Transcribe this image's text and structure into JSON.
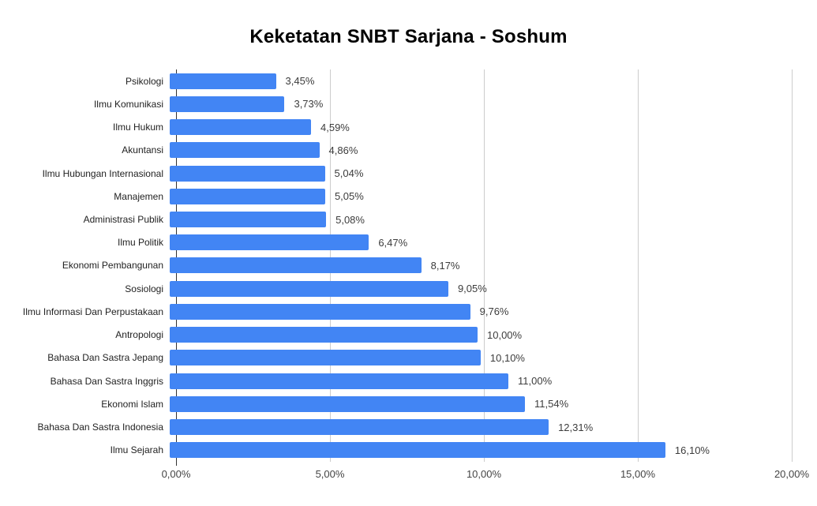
{
  "chart_data": {
    "type": "bar",
    "orientation": "horizontal",
    "title": "Keketatan SNBT Sarjana - Soshum",
    "xlabel": "",
    "ylabel": "",
    "xlim": [
      0,
      20
    ],
    "grid": true,
    "legend_position": "none",
    "categories": [
      "Psikologi",
      "Ilmu Komunikasi",
      "Ilmu Hukum",
      "Akuntansi",
      "Ilmu Hubungan Internasional",
      "Manajemen",
      "Administrasi Publik",
      "Ilmu Politik",
      "Ekonomi Pembangunan",
      "Sosiologi",
      "Ilmu Informasi Dan Perpustakaan",
      "Antropologi",
      "Bahasa Dan Sastra Jepang",
      "Bahasa Dan Sastra Inggris",
      "Ekonomi Islam",
      "Bahasa Dan Sastra Indonesia",
      "Ilmu Sejarah"
    ],
    "values": [
      3.45,
      3.73,
      4.59,
      4.86,
      5.04,
      5.05,
      5.08,
      6.47,
      8.17,
      9.05,
      9.76,
      10.0,
      10.1,
      11.0,
      11.54,
      12.31,
      16.1
    ],
    "value_labels": [
      "3,45%",
      "3,73%",
      "4,59%",
      "4,86%",
      "5,04%",
      "5,05%",
      "5,08%",
      "6,47%",
      "8,17%",
      "9,05%",
      "9,76%",
      "10,00%",
      "10,10%",
      "11,00%",
      "11,54%",
      "12,31%",
      "16,10%"
    ],
    "x_ticks": [
      {
        "value": 0,
        "label": "0,00%"
      },
      {
        "value": 5,
        "label": "5,00%"
      },
      {
        "value": 10,
        "label": "10,00%"
      },
      {
        "value": 15,
        "label": "15,00%"
      },
      {
        "value": 20,
        "label": "20,00%"
      }
    ],
    "colors": {
      "bar": "#4285f4",
      "gridline": "#cccccc",
      "zero_line": "#333333",
      "title": "#000000",
      "category_label": "#222222",
      "value_label": "#3c3c3c",
      "tick_label": "#444444",
      "background": "#ffffff"
    }
  }
}
